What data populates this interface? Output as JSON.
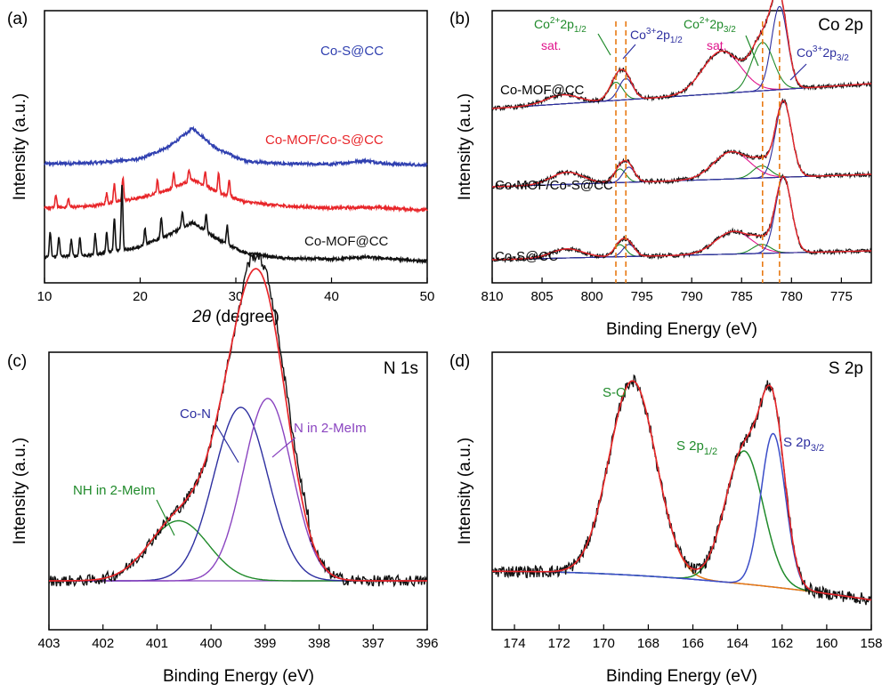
{
  "colors": {
    "blue": "#3040b0",
    "red": "#e8262a",
    "black": "#111111",
    "green": "#1f8a2a",
    "purple": "#8a44c0",
    "magenta": "#e0148c",
    "orange": "#e87a14",
    "navy": "#2d2fa0",
    "fit_blue": "#3b4dc8"
  },
  "chart_data": [
    {
      "id": "a",
      "type": "line",
      "panel_label": "(a)",
      "xlabel_italic": "2θ",
      "xlabel_rest": " (degree)",
      "ylabel": "Intensity (a.u.)",
      "xlim": [
        10,
        50
      ],
      "xticks": [
        "10",
        "20",
        "30",
        "40",
        "50"
      ],
      "xtick_values": [
        10,
        20,
        30,
        40,
        50
      ],
      "series": [
        {
          "name": "Co-S@CC",
          "color": "blue",
          "offset": 2.35,
          "points": [
            [
              10,
              0.08
            ],
            [
              15,
              0.1
            ],
            [
              20,
              0.2
            ],
            [
              23,
              0.5
            ],
            [
              25.5,
              0.95
            ],
            [
              28,
              0.45
            ],
            [
              31,
              0.15
            ],
            [
              35,
              0.08
            ],
            [
              40,
              0.07
            ],
            [
              43.5,
              0.16
            ],
            [
              46,
              0.08
            ],
            [
              50,
              0.05
            ]
          ],
          "spikes": []
        },
        {
          "name": "Co-MOF/Co-S@CC",
          "color": "red",
          "offset": 1.25,
          "points": [
            [
              10,
              0.1
            ],
            [
              15,
              0.15
            ],
            [
              20,
              0.35
            ],
            [
              23,
              0.55
            ],
            [
              25.5,
              0.8
            ],
            [
              28,
              0.5
            ],
            [
              31,
              0.25
            ],
            [
              35,
              0.15
            ],
            [
              40,
              0.1
            ],
            [
              44,
              0.12
            ],
            [
              50,
              0.05
            ]
          ],
          "spikes": [
            [
              11.2,
              0.3
            ],
            [
              12.5,
              0.2
            ],
            [
              16.5,
              0.25
            ],
            [
              17.3,
              0.45
            ],
            [
              18.2,
              0.55
            ],
            [
              21.8,
              0.3
            ],
            [
              23.5,
              0.35
            ],
            [
              25.1,
              0.3
            ],
            [
              26.8,
              0.35
            ],
            [
              28.2,
              0.45
            ],
            [
              29.3,
              0.4
            ]
          ]
        },
        {
          "name": "Co-MOF@CC",
          "color": "black",
          "offset": 0.0,
          "points": [
            [
              10,
              0.15
            ],
            [
              15,
              0.2
            ],
            [
              20,
              0.4
            ],
            [
              23,
              0.7
            ],
            [
              25.5,
              1.0
            ],
            [
              28,
              0.6
            ],
            [
              31,
              0.25
            ],
            [
              35,
              0.12
            ],
            [
              40,
              0.1
            ],
            [
              43.5,
              0.15
            ],
            [
              50,
              0.05
            ]
          ],
          "spikes": [
            [
              10.6,
              0.6
            ],
            [
              11.5,
              0.5
            ],
            [
              12.8,
              0.4
            ],
            [
              13.7,
              0.45
            ],
            [
              15.3,
              0.5
            ],
            [
              16.5,
              0.5
            ],
            [
              17.3,
              0.8
            ],
            [
              18.1,
              1.6
            ],
            [
              20.5,
              0.4
            ],
            [
              22.2,
              0.5
            ],
            [
              24.4,
              0.4
            ],
            [
              26.9,
              0.4
            ],
            [
              29.1,
              0.45
            ]
          ]
        }
      ]
    },
    {
      "id": "b",
      "type": "line",
      "panel_label": "(b)",
      "title": "Co 2p",
      "xlabel": "Binding Energy (eV)",
      "ylabel": "Intensity (a.u.)",
      "xlim": [
        810,
        772
      ],
      "xticks": [
        "810",
        "805",
        "800",
        "795",
        "790",
        "785",
        "780",
        "775"
      ],
      "xtick_values": [
        810,
        805,
        800,
        795,
        790,
        785,
        780,
        775
      ],
      "reference_lines": [
        797.6,
        796.6,
        782.9,
        781.2
      ],
      "stack_labels": [
        "Co-MOF@CC",
        "Co-MOF/Co-S@CC",
        "Co-S@CC"
      ],
      "annotations": [
        {
          "text": "Co",
          "sup": "2+",
          "rest": "2p",
          "sub": "1/2",
          "color": "green"
        },
        {
          "text": "Co",
          "sup": "3+",
          "rest": "2p",
          "sub": "1/2",
          "color": "navy"
        },
        {
          "text": "Co",
          "sup": "2+",
          "rest": "2p",
          "sub": "3/2",
          "color": "green"
        },
        {
          "text": "Co",
          "sup": "3+",
          "rest": "2p",
          "sub": "3/2",
          "color": "navy"
        },
        {
          "text": "sat.",
          "color": "magenta"
        },
        {
          "text": "sat.",
          "color": "magenta"
        }
      ]
    },
    {
      "id": "c",
      "type": "line",
      "panel_label": "(c)",
      "title": "N 1s",
      "xlabel": "Binding Energy (eV)",
      "ylabel": "Intensity (a.u.)",
      "xlim": [
        403,
        396
      ],
      "xticks": [
        "403",
        "402",
        "401",
        "400",
        "399",
        "398",
        "397",
        "396"
      ],
      "xtick_values": [
        403,
        402,
        401,
        400,
        399,
        398,
        397,
        396
      ],
      "peaks": [
        {
          "name": "NH in 2-MeIm",
          "center": 400.6,
          "height": 0.27,
          "width": 0.55,
          "color": "green"
        },
        {
          "name": "Co-N",
          "center": 399.45,
          "height": 0.78,
          "width": 0.5,
          "color": "navy"
        },
        {
          "name": "N in 2-MeIm",
          "center": 398.95,
          "height": 0.82,
          "width": 0.45,
          "color": "purple"
        }
      ],
      "annotations": [
        "NH in 2-MeIm",
        "Co-N",
        "N in 2-MeIm"
      ]
    },
    {
      "id": "d",
      "type": "line",
      "panel_label": "(d)",
      "title": "S 2p",
      "xlabel": "Binding Energy (eV)",
      "ylabel": "Intensity (a.u.)",
      "xlim": [
        175,
        158
      ],
      "xticks": [
        "174",
        "172",
        "170",
        "168",
        "166",
        "164",
        "162",
        "160",
        "158"
      ],
      "xtick_values": [
        174,
        172,
        170,
        168,
        166,
        164,
        162,
        160,
        158
      ],
      "peaks": [
        {
          "name": "S-O",
          "center": 168.7,
          "height": 0.95,
          "width": 1.05,
          "color": "orange"
        },
        {
          "name": "S 2p1/2",
          "center": 163.7,
          "height": 0.65,
          "width": 0.85,
          "color": "green"
        },
        {
          "name": "S 2p3/2",
          "center": 162.4,
          "height": 0.75,
          "width": 0.55,
          "color": "fit_blue"
        }
      ],
      "annotations": [
        {
          "text": "S-O",
          "color": "green"
        },
        {
          "text": "S 2p",
          "sub": "1/2",
          "color": "green"
        },
        {
          "text": "S 2p",
          "sub": "3/2",
          "color": "navy"
        }
      ]
    }
  ]
}
